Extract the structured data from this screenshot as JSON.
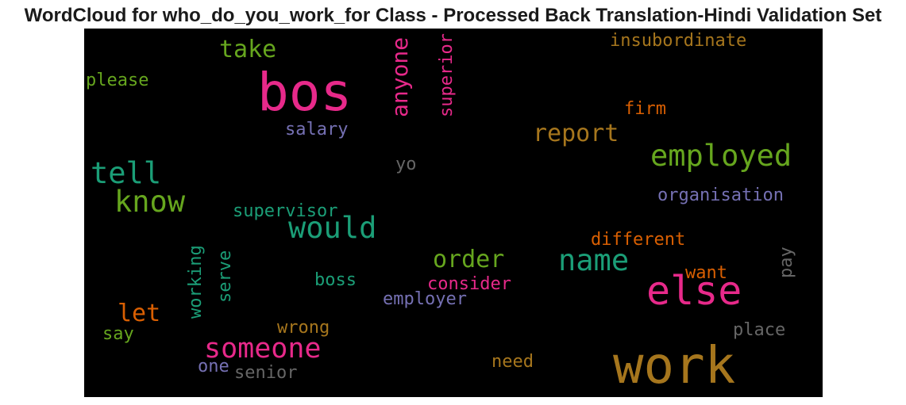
{
  "title": "WordCloud for who_do_you_work_for Class - Processed Back Translation-Hindi Validation Set",
  "colors": {
    "pink": "#e7298a",
    "green": "#66a61e",
    "teal": "#1b9e77",
    "purple": "#7570b3",
    "orange": "#d95f02",
    "gold": "#a6761d",
    "gray": "#666666"
  },
  "words": [
    {
      "text": "bos",
      "color": "#e7298a"
    },
    {
      "text": "work",
      "color": "#a6761d"
    },
    {
      "text": "else",
      "color": "#e7298a"
    },
    {
      "text": "employed",
      "color": "#66a61e"
    },
    {
      "text": "tell",
      "color": "#1b9e77"
    },
    {
      "text": "know",
      "color": "#66a61e"
    },
    {
      "text": "would",
      "color": "#1b9e77"
    },
    {
      "text": "name",
      "color": "#1b9e77"
    },
    {
      "text": "someone",
      "color": "#e7298a"
    },
    {
      "text": "anyone",
      "color": "#e7298a"
    },
    {
      "text": "report",
      "color": "#a6761d"
    },
    {
      "text": "take",
      "color": "#66a61e"
    },
    {
      "text": "order",
      "color": "#66a61e"
    },
    {
      "text": "let",
      "color": "#d95f02"
    },
    {
      "text": "insubordinate",
      "color": "#a6761d"
    },
    {
      "text": "superior",
      "color": "#e7298a"
    },
    {
      "text": "please",
      "color": "#66a61e"
    },
    {
      "text": "firm",
      "color": "#d95f02"
    },
    {
      "text": "salary",
      "color": "#7570b3"
    },
    {
      "text": "yo",
      "color": "#666666"
    },
    {
      "text": "organisation",
      "color": "#7570b3"
    },
    {
      "text": "supervisor",
      "color": "#1b9e77"
    },
    {
      "text": "different",
      "color": "#d95f02"
    },
    {
      "text": "working",
      "color": "#1b9e77"
    },
    {
      "text": "serve",
      "color": "#1b9e77"
    },
    {
      "text": "pay",
      "color": "#666666"
    },
    {
      "text": "want",
      "color": "#d95f02"
    },
    {
      "text": "boss",
      "color": "#1b9e77"
    },
    {
      "text": "consider",
      "color": "#e7298a"
    },
    {
      "text": "employer",
      "color": "#7570b3"
    },
    {
      "text": "wrong",
      "color": "#a6761d"
    },
    {
      "text": "say",
      "color": "#66a61e"
    },
    {
      "text": "place",
      "color": "#666666"
    },
    {
      "text": "need",
      "color": "#a6761d"
    },
    {
      "text": "one",
      "color": "#7570b3"
    },
    {
      "text": "senior",
      "color": "#666666"
    }
  ]
}
